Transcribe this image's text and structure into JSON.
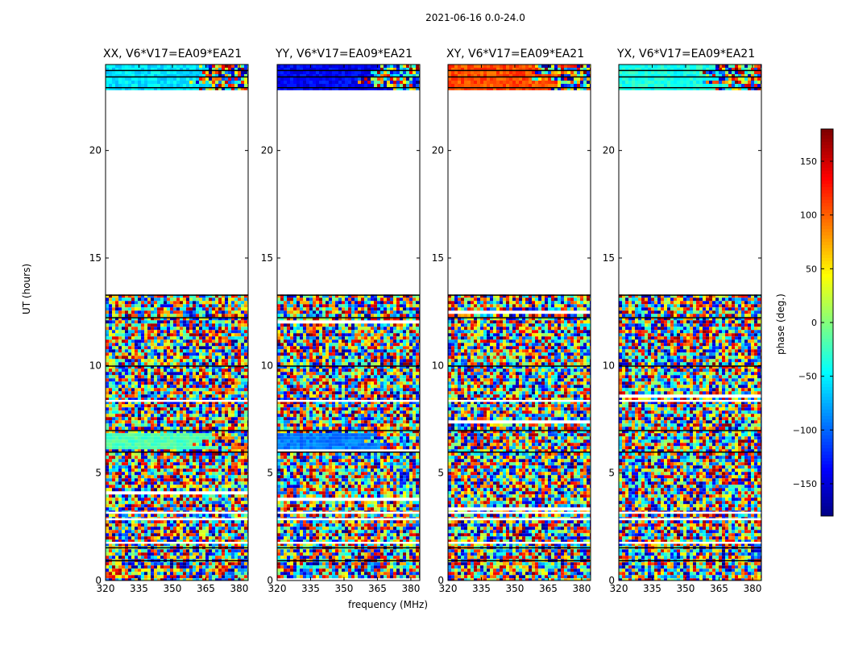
{
  "suptitle": "2021-06-16 0.0-24.0",
  "xlabel": "frequency (MHz)",
  "ylabel": "UT (hours)",
  "colorbar": {
    "label": "phase (deg.)",
    "ticks": [
      150,
      100,
      50,
      0,
      -50,
      -100,
      -150
    ],
    "tick_labels": [
      "150",
      "100",
      "50",
      "0",
      "−50",
      "−100",
      "−150"
    ],
    "range": [
      -180,
      180
    ],
    "colormap": "jet"
  },
  "chart_data": {
    "type": "heatmap",
    "title": "2021-06-16 0.0-24.0",
    "xlabel": "frequency (MHz)",
    "ylabel": "UT (hours)",
    "xlim": [
      320,
      384
    ],
    "ylim": [
      0,
      24
    ],
    "x_ticks": [
      320,
      335,
      350,
      365,
      380
    ],
    "y_ticks": [
      0,
      5,
      10,
      15,
      20
    ],
    "value_label": "phase (deg.)",
    "value_range": [
      -180,
      180
    ],
    "coverage_hours": [
      [
        0,
        13.3
      ],
      [
        22.8,
        24
      ]
    ],
    "gap_hours": [
      13.3,
      22.8
    ],
    "panels": [
      {
        "title": "XX, V6*V17=EA09*EA21",
        "pol": "XX"
      },
      {
        "title": "YY, V6*V17=EA09*EA21",
        "pol": "YY"
      },
      {
        "title": "XY, V6*V17=EA09*EA21",
        "pol": "XY"
      },
      {
        "title": "YX, V6*V17=EA09*EA21",
        "pol": "YX"
      }
    ]
  }
}
